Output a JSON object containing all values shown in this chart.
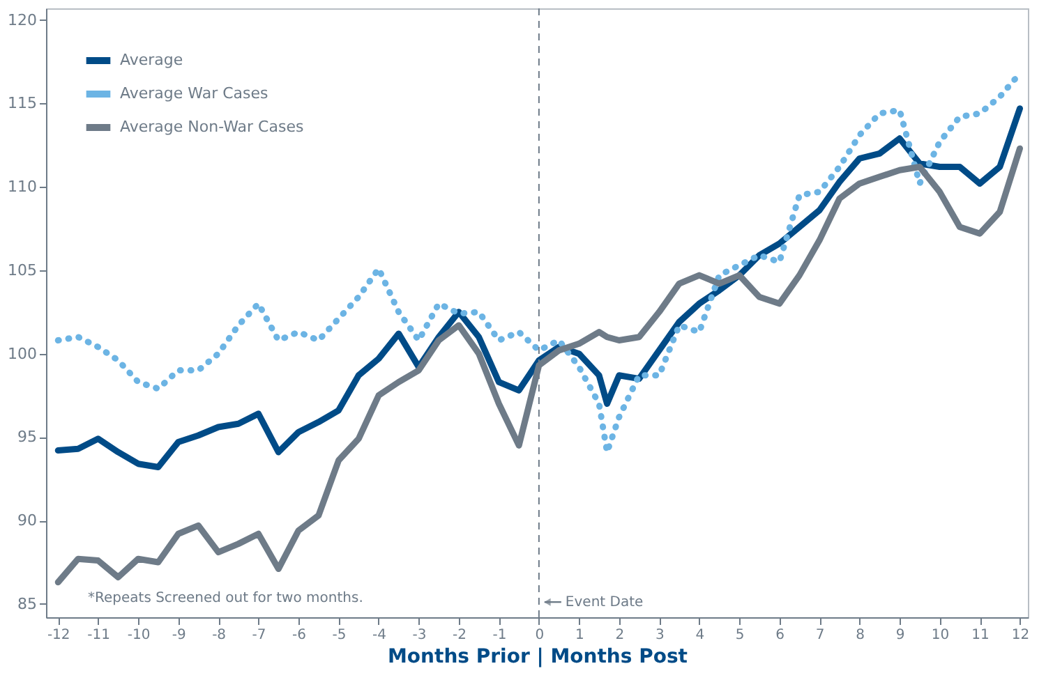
{
  "chart_data": {
    "type": "line",
    "xlabel": "Months Prior | Months Post",
    "xlim": [
      -12.3,
      12.2
    ],
    "xticks": [
      -12,
      -11,
      -10,
      -9,
      -8,
      -7,
      -6,
      -5,
      -4,
      -3,
      -2,
      -1,
      0,
      1,
      2,
      3,
      4,
      5,
      6,
      7,
      8,
      9,
      10,
      11,
      12
    ],
    "ylim": [
      84.2,
      120.7
    ],
    "yticks": [
      85,
      90,
      95,
      100,
      105,
      110,
      115,
      120
    ],
    "grid": false,
    "legend": "top left",
    "x": [
      -12,
      -11.5,
      -11,
      -10.5,
      -10,
      -9.5,
      -9,
      -8.5,
      -8,
      -7.5,
      -7,
      -6.5,
      -6,
      -5.5,
      -5,
      -4.5,
      -4,
      -3.5,
      -3,
      -2.5,
      -2,
      -1.5,
      -1,
      -0.5,
      0,
      0.5,
      1,
      1.5,
      1.7,
      2,
      2.5,
      3,
      3.5,
      4,
      4.5,
      5,
      5.5,
      6,
      6.5,
      7,
      7.5,
      8,
      8.5,
      9,
      9.5,
      10,
      10.5,
      11,
      11.5,
      12
    ],
    "series": [
      {
        "name": "Average",
        "color": "#004b87",
        "line_style": "solid",
        "values": [
          94.2,
          94.3,
          94.9,
          94.1,
          93.4,
          93.2,
          94.7,
          95.1,
          95.6,
          95.8,
          96.4,
          94.1,
          95.3,
          95.9,
          96.6,
          98.7,
          99.7,
          101.2,
          99.2,
          101,
          102.5,
          101,
          98.3,
          97.8,
          99.6,
          100.4,
          100,
          98.7,
          97,
          98.7,
          98.5,
          100.2,
          101.9,
          103,
          103.8,
          104.7,
          105.9,
          106.6,
          107.6,
          108.6,
          110.3,
          111.7,
          112,
          112.9,
          111.4,
          111.2,
          111.2,
          110.2,
          111.2,
          114.7
        ]
      },
      {
        "name": "Average War Cases",
        "color": "#6cb4e4",
        "line_style": "dotted",
        "values": [
          100.8,
          101,
          100.4,
          99.6,
          98.3,
          97.9,
          99,
          99,
          100,
          101.7,
          103,
          100.8,
          101.3,
          100.8,
          102.1,
          103.4,
          105.1,
          102.5,
          100.8,
          103,
          102.4,
          102.5,
          100.8,
          101.3,
          100.2,
          100.8,
          99.2,
          97,
          94.1,
          96.2,
          98.7,
          98.7,
          101.7,
          101.3,
          104.7,
          105.3,
          105.9,
          105.5,
          109.5,
          109.7,
          111.2,
          113.1,
          114.4,
          114.6,
          110.2,
          112.7,
          114.2,
          114.4,
          115.4,
          116.8
        ]
      },
      {
        "name": "Average Non-War Cases",
        "color": "#6e7b88",
        "line_style": "solid",
        "values": [
          86.3,
          87.7,
          87.6,
          86.6,
          87.7,
          87.5,
          89.2,
          89.7,
          88.1,
          88.6,
          89.2,
          87.1,
          89.4,
          90.3,
          93.6,
          94.9,
          97.5,
          98.3,
          99,
          100.8,
          101.7,
          100,
          97,
          94.5,
          99.3,
          100.2,
          100.6,
          101.3,
          101,
          100.8,
          101,
          102.5,
          104.2,
          104.7,
          104.2,
          104.7,
          103.4,
          103,
          104.7,
          106.8,
          109.3,
          110.2,
          110.6,
          111,
          111.2,
          109.7,
          107.6,
          107.2,
          108.5,
          112.3
        ]
      }
    ],
    "ref_lines": [
      {
        "axis": "x",
        "value": 0,
        "label": "Event Date",
        "color": "#6e7b88",
        "line_style": "dashed"
      }
    ],
    "annotations": [
      "*Repeats Screened out for two months."
    ]
  }
}
